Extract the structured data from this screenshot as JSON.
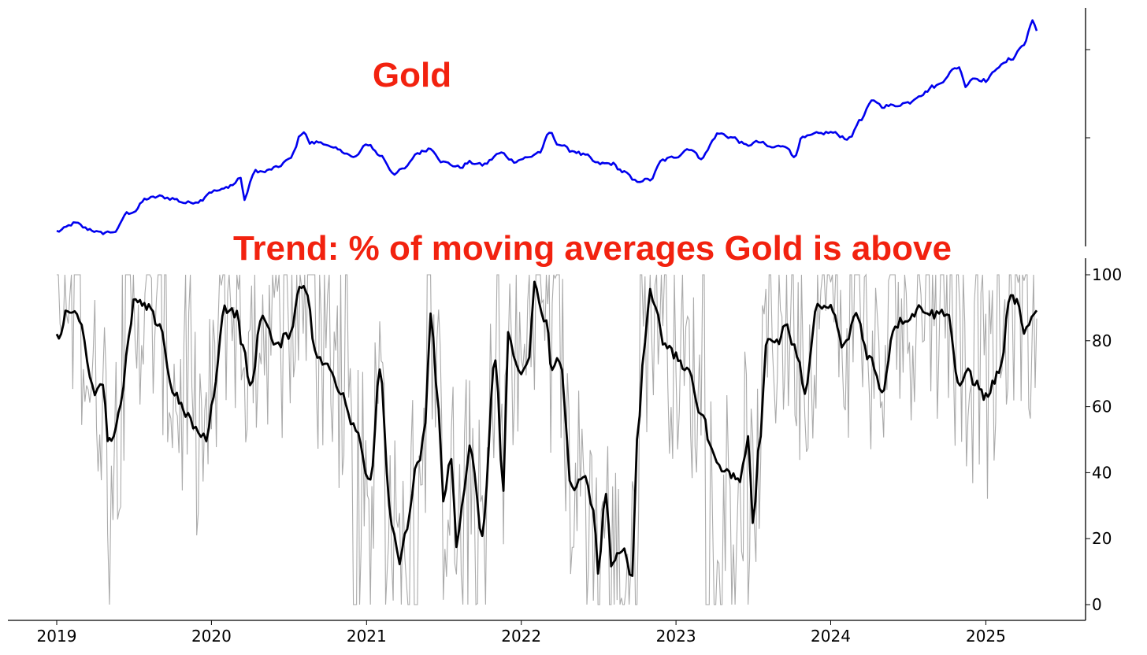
{
  "chart_data": [
    {
      "type": "line",
      "title": "Gold",
      "xlabel": "",
      "ylabel": "",
      "x_range": [
        "2019-01-01",
        "2025-05-01"
      ],
      "y_scale": "log",
      "y_ticks_labeled": false,
      "grid": false,
      "legend": "none",
      "colors": {
        "series": "#0000ee",
        "title": "#f2220f"
      },
      "series": [
        {
          "x": [
            "2019-01-01",
            "2019-02-15",
            "2019-03-15",
            "2019-04-15",
            "2019-05-01",
            "2019-05-20",
            "2019-06-15",
            "2019-07-01",
            "2019-08-01",
            "2019-09-01",
            "2019-10-01",
            "2019-11-01",
            "2019-12-01",
            "2020-01-01",
            "2020-01-20",
            "2020-02-20",
            "2020-03-10",
            "2020-03-19",
            "2020-04-01",
            "2020-04-14",
            "2020-05-01",
            "2020-06-01",
            "2020-07-01",
            "2020-08-06",
            "2020-08-20",
            "2020-09-15",
            "2020-10-15",
            "2020-11-10",
            "2020-12-01",
            "2021-01-05",
            "2021-02-01",
            "2021-03-08",
            "2021-04-01",
            "2021-05-01",
            "2021-06-01",
            "2021-07-01",
            "2021-08-10",
            "2021-09-01",
            "2021-10-01",
            "2021-11-15",
            "2021-12-15",
            "2022-01-15",
            "2022-02-15",
            "2022-03-08",
            "2022-04-01",
            "2022-05-01",
            "2022-06-01",
            "2022-07-01",
            "2022-08-01",
            "2022-09-01",
            "2022-09-26",
            "2022-11-01",
            "2022-12-01",
            "2023-01-01",
            "2023-02-01",
            "2023-03-01",
            "2023-04-13",
            "2023-05-15",
            "2023-06-15",
            "2023-07-15",
            "2023-08-15",
            "2023-09-15",
            "2023-10-06",
            "2023-10-27",
            "2023-12-04",
            "2024-01-01",
            "2024-02-14",
            "2024-03-08",
            "2024-04-12",
            "2024-05-01",
            "2024-06-01",
            "2024-07-01",
            "2024-08-01",
            "2024-09-01",
            "2024-10-30",
            "2024-11-14",
            "2024-12-01",
            "2025-01-01",
            "2025-02-01",
            "2025-03-01",
            "2025-04-01",
            "2025-04-21",
            "2025-05-01"
          ],
          "values": [
            1285,
            1335,
            1300,
            1275,
            1280,
            1285,
            1400,
            1410,
            1500,
            1515,
            1500,
            1470,
            1480,
            1550,
            1560,
            1600,
            1660,
            1480,
            1620,
            1715,
            1700,
            1735,
            1800,
            2060,
            1950,
            1960,
            1900,
            1870,
            1820,
            1940,
            1840,
            1690,
            1730,
            1860,
            1900,
            1780,
            1740,
            1780,
            1760,
            1860,
            1790,
            1820,
            1870,
            2050,
            1935,
            1880,
            1840,
            1770,
            1770,
            1700,
            1630,
            1640,
            1800,
            1830,
            1900,
            1820,
            2040,
            2000,
            1930,
            1960,
            1910,
            1930,
            1830,
            2000,
            2040,
            2050,
            1990,
            2160,
            2390,
            2320,
            2330,
            2360,
            2450,
            2550,
            2790,
            2560,
            2650,
            2620,
            2800,
            2900,
            3100,
            3480,
            3300
          ]
        }
      ]
    },
    {
      "type": "line",
      "title": "Trend: % of moving averages Gold is above",
      "xlabel": "",
      "ylabel": "",
      "ylim": [
        0,
        100
      ],
      "yticks": [
        "0",
        "20",
        "40",
        "60",
        "80",
        "100"
      ],
      "xticks": [
        "2019",
        "2020",
        "2021",
        "2022",
        "2023",
        "2024",
        "2025"
      ],
      "grid": false,
      "legend": "none",
      "colors": {
        "smoothed": "#000000",
        "raw": "#aaaaaa",
        "title": "#f2220f"
      },
      "series": [
        {
          "x": [
            "2019-01-01",
            "2019-02-01",
            "2019-03-01",
            "2019-03-20",
            "2019-04-01",
            "2019-04-20",
            "2019-05-01",
            "2019-05-10",
            "2019-06-01",
            "2019-06-20",
            "2019-07-01",
            "2019-08-01",
            "2019-09-01",
            "2019-10-01",
            "2019-11-01",
            "2019-12-01",
            "2019-12-20",
            "2020-01-01",
            "2020-02-01",
            "2020-03-01",
            "2020-03-15",
            "2020-04-01",
            "2020-05-01",
            "2020-06-01",
            "2020-07-01",
            "2020-08-01",
            "2020-08-15",
            "2020-09-01",
            "2020-10-01",
            "2020-11-01",
            "2020-12-01",
            "2021-01-10",
            "2021-02-01",
            "2021-03-01",
            "2021-03-20",
            "2021-04-01",
            "2021-05-01",
            "2021-05-20",
            "2021-06-01",
            "2021-06-20",
            "2021-07-01",
            "2021-07-20",
            "2021-08-01",
            "2021-08-20",
            "2021-09-01",
            "2021-10-01",
            "2021-11-01",
            "2021-11-20",
            "2021-12-01",
            "2021-12-20",
            "2022-01-01",
            "2022-01-20",
            "2022-02-01",
            "2022-03-01",
            "2022-03-15",
            "2022-04-01",
            "2022-05-01",
            "2022-06-01",
            "2022-06-20",
            "2022-07-01",
            "2022-07-20",
            "2022-08-01",
            "2022-08-15",
            "2022-09-01",
            "2022-09-20",
            "2022-10-01",
            "2022-10-20",
            "2022-11-01",
            "2022-11-20",
            "2022-12-01",
            "2023-01-01",
            "2023-02-01",
            "2023-03-01",
            "2023-04-01",
            "2023-05-01",
            "2023-06-01",
            "2023-06-20",
            "2023-07-01",
            "2023-07-20",
            "2023-08-01",
            "2023-09-01",
            "2023-09-15",
            "2023-10-01",
            "2023-10-20",
            "2023-11-01",
            "2023-12-01",
            "2024-01-01",
            "2024-02-01",
            "2024-03-01",
            "2024-04-01",
            "2024-05-01",
            "2024-06-01",
            "2024-07-01",
            "2024-08-01",
            "2024-09-01",
            "2024-10-01",
            "2024-11-01",
            "2024-11-20",
            "2024-12-01",
            "2025-01-01",
            "2025-02-01",
            "2025-03-01",
            "2025-03-15",
            "2025-04-01",
            "2025-05-01"
          ],
          "values": [
            81,
            90,
            86,
            68,
            65,
            68,
            51,
            50,
            60,
            80,
            92,
            90,
            85,
            65,
            58,
            52,
            50,
            60,
            90,
            88,
            78,
            66,
            88,
            78,
            82,
            97,
            95,
            76,
            72,
            65,
            55,
            38,
            70,
            25,
            12,
            20,
            42,
            55,
            88,
            60,
            30,
            45,
            17,
            35,
            48,
            22,
            75,
            35,
            82,
            72,
            70,
            75,
            97,
            85,
            70,
            75,
            35,
            38,
            30,
            10,
            35,
            12,
            15,
            17,
            8,
            50,
            80,
            95,
            88,
            80,
            75,
            70,
            58,
            45,
            40,
            38,
            50,
            26,
            52,
            80,
            80,
            85,
            80,
            72,
            65,
            90,
            90,
            78,
            88,
            75,
            65,
            85,
            87,
            90,
            88,
            89,
            65,
            72,
            68,
            63,
            70,
            93,
            92,
            82,
            89
          ]
        }
      ]
    }
  ]
}
